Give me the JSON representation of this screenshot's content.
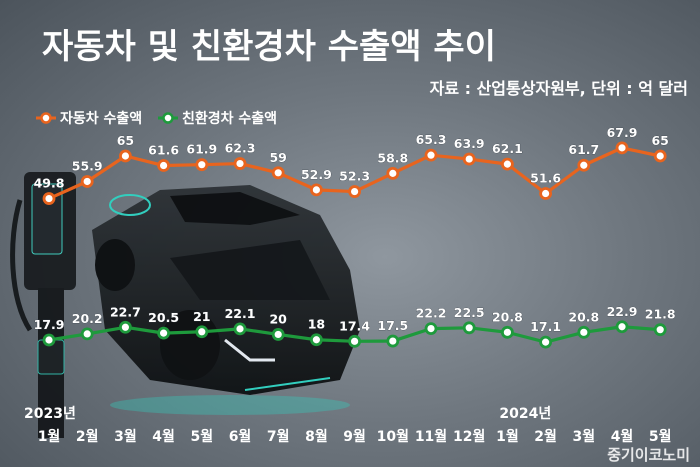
{
  "header": {
    "title": "자동차 및 친환경차 수출액 추이",
    "source": "자료 : 산업통상자원부, 단위 : 억 달러",
    "watermark": "중기이코노미"
  },
  "chart_data": {
    "type": "line",
    "title": "자동차 및 친환경차 수출액 추이",
    "unit": "억 달러",
    "legend_position": "top-left",
    "grid": false,
    "x": [
      "1월",
      "2월",
      "3월",
      "4월",
      "5월",
      "6월",
      "7월",
      "8월",
      "9월",
      "10월",
      "11월",
      "12월",
      "1월",
      "2월",
      "3월",
      "4월",
      "5월"
    ],
    "year_labels": [
      {
        "label": "2023년",
        "index": 0
      },
      {
        "label": "2024년",
        "index": 12
      }
    ],
    "series": [
      {
        "name": "자동차 수출액",
        "color": "#e8641e",
        "values": [
          49.8,
          55.9,
          65,
          61.6,
          61.9,
          62.3,
          59,
          52.9,
          52.3,
          58.8,
          65.3,
          63.9,
          62.1,
          51.6,
          61.7,
          67.9,
          65
        ]
      },
      {
        "name": "친환경차 수출액",
        "color": "#1e9a3c",
        "values": [
          17.9,
          20.2,
          22.7,
          20.5,
          21,
          22.1,
          20,
          18,
          17.4,
          17.5,
          22.2,
          22.5,
          20.8,
          17.1,
          20.8,
          22.9,
          21.8
        ]
      }
    ]
  }
}
